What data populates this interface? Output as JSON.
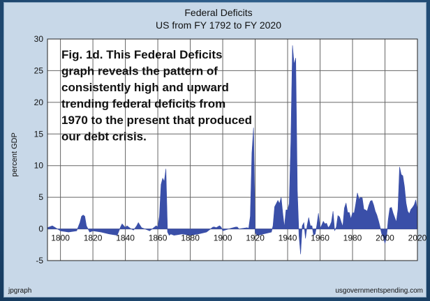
{
  "chart_data": {
    "type": "area",
    "title": "Federal Deficits",
    "subtitle": "US from FY 1792 to FY 2020",
    "xlabel": "",
    "ylabel": "percent GDP",
    "xlim": [
      1792,
      2020
    ],
    "ylim": [
      -5,
      30
    ],
    "xticks": [
      1800,
      1820,
      1840,
      1860,
      1880,
      1900,
      1920,
      1940,
      1960,
      1980,
      2000,
      2020
    ],
    "yticks": [
      -5,
      0,
      5,
      10,
      15,
      20,
      25,
      30
    ],
    "grid": true,
    "legend": "none",
    "annotation": [
      "Fig. 1d. This Federal Deficits",
      "graph reveals the pattern of",
      "consistently high and upward",
      "trending federal deficits from",
      "1970 to the present that produced",
      "our debt crisis."
    ],
    "colors": {
      "fill": "#3a4fa8",
      "plot_bg": "#ffffff",
      "grid": "#666666"
    },
    "series": [
      {
        "x": [
          1792,
          1795,
          1800,
          1805,
          1810,
          1812,
          1813,
          1814,
          1815,
          1816,
          1818,
          1820,
          1825,
          1830,
          1835,
          1837,
          1838,
          1840,
          1841,
          1843,
          1845,
          1847,
          1848,
          1850,
          1855,
          1858,
          1859,
          1860,
          1861,
          1862,
          1863,
          1864,
          1865,
          1866,
          1867,
          1868,
          1870,
          1875,
          1880,
          1885,
          1890,
          1894,
          1895,
          1896,
          1898,
          1899,
          1900,
          1905,
          1908,
          1909,
          1910,
          1915,
          1916,
          1917,
          1918,
          1919,
          1920,
          1921,
          1922,
          1925,
          1930,
          1931,
          1932,
          1933,
          1934,
          1935,
          1936,
          1937,
          1938,
          1939,
          1940,
          1941,
          1942,
          1943,
          1944,
          1945,
          1946,
          1947,
          1948,
          1949,
          1950,
          1951,
          1952,
          1953,
          1954,
          1955,
          1956,
          1957,
          1958,
          1959,
          1960,
          1961,
          1962,
          1963,
          1964,
          1965,
          1966,
          1967,
          1968,
          1969,
          1970,
          1971,
          1972,
          1973,
          1974,
          1975,
          1976,
          1977,
          1978,
          1979,
          1980,
          1981,
          1982,
          1983,
          1984,
          1985,
          1986,
          1987,
          1988,
          1989,
          1990,
          1991,
          1992,
          1993,
          1994,
          1995,
          1996,
          1997,
          1998,
          1999,
          2000,
          2001,
          2002,
          2003,
          2004,
          2005,
          2006,
          2007,
          2008,
          2009,
          2010,
          2011,
          2012,
          2013,
          2014,
          2015,
          2016,
          2017,
          2018,
          2019,
          2020
        ],
        "values": [
          0.2,
          0.5,
          -0.3,
          -0.5,
          -0.3,
          1.0,
          2.0,
          2.2,
          2.0,
          0.5,
          -0.5,
          -0.3,
          -0.5,
          -0.8,
          -1.0,
          0.3,
          0.8,
          0.2,
          0.5,
          0.1,
          -0.2,
          0.5,
          1.0,
          0.2,
          -0.3,
          0.3,
          0.5,
          0.3,
          2.0,
          7.0,
          8.0,
          7.5,
          9.5,
          -0.5,
          -1.0,
          -0.8,
          -1.0,
          -0.8,
          -1.0,
          -0.8,
          -0.5,
          0.3,
          0.3,
          0.2,
          0.5,
          0.3,
          -0.3,
          0.1,
          0.3,
          0.3,
          0.0,
          0.2,
          0.1,
          2.0,
          12.0,
          16.0,
          -0.5,
          -1.0,
          -1.0,
          -0.8,
          -0.5,
          0.5,
          3.5,
          4.0,
          4.5,
          4.0,
          5.0,
          2.5,
          0.3,
          3.0,
          3.0,
          4.0,
          14.0,
          29.0,
          26.0,
          27.0,
          6.0,
          -1.0,
          -4.0,
          0.5,
          1.0,
          -1.5,
          0.5,
          1.8,
          0.5,
          0.5,
          -1.0,
          -0.8,
          0.6,
          2.5,
          0.1,
          0.6,
          1.2,
          0.8,
          0.9,
          0.2,
          0.5,
          1.1,
          2.8,
          -0.3,
          0.3,
          2.1,
          1.9,
          1.1,
          0.4,
          3.3,
          4.1,
          2.6,
          2.6,
          1.6,
          2.6,
          2.5,
          4.0,
          5.7,
          4.7,
          5.0,
          4.9,
          3.1,
          3.0,
          2.8,
          3.7,
          4.4,
          4.5,
          3.8,
          2.8,
          2.2,
          1.3,
          0.3,
          -0.8,
          -1.3,
          -2.3,
          -1.2,
          1.5,
          3.3,
          3.4,
          2.5,
          1.8,
          1.1,
          3.1,
          9.8,
          8.6,
          8.4,
          6.7,
          4.1,
          2.8,
          2.4,
          3.1,
          3.4,
          3.8,
          4.6,
          2.8
        ]
      }
    ]
  },
  "footer": {
    "left": "jpgraph",
    "right": "usgovernmentspending.com"
  }
}
